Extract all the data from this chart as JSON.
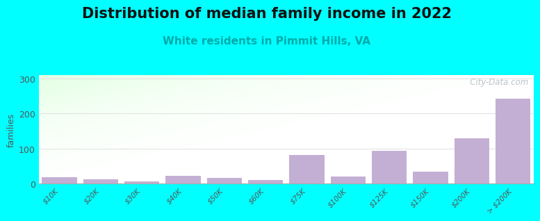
{
  "title": "Distribution of median family income in 2022",
  "subtitle": "White residents in Pimmit Hills, VA",
  "categories": [
    "$10K",
    "$20K",
    "$30K",
    "$40K",
    "$50K",
    "$60K",
    "$75K",
    "$100K",
    "$125K",
    "$150K",
    "$200K",
    "> $200K"
  ],
  "values": [
    18,
    13,
    7,
    22,
    17,
    10,
    82,
    20,
    93,
    33,
    130,
    243
  ],
  "bar_color": "#c4afd4",
  "background_color": "#00ffff",
  "title_fontsize": 15,
  "subtitle_fontsize": 11,
  "subtitle_color": "#00aaaa",
  "ylabel": "families",
  "ylim": [
    0,
    310
  ],
  "yticks": [
    0,
    100,
    200,
    300
  ],
  "grid_color": "#e0e0e0",
  "watermark": "   City-Data.com"
}
